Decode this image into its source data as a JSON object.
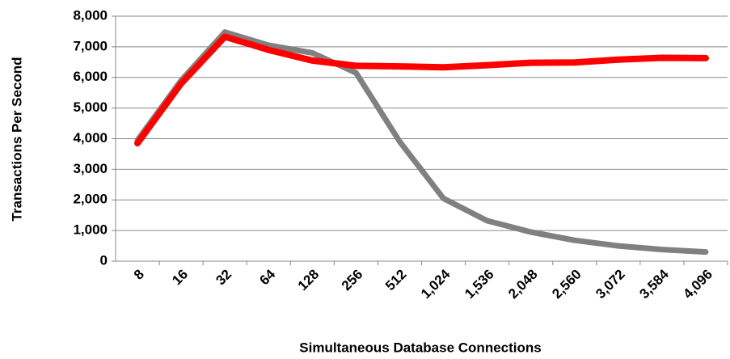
{
  "chart_data": {
    "type": "line",
    "xlabel": "Simultaneous Database Connections",
    "ylabel": "Transactions Per Second",
    "categories": [
      "8",
      "16",
      "32",
      "64",
      "128",
      "256",
      "512",
      "1,024",
      "1,536",
      "2,048",
      "2,560",
      "3,072",
      "3,584",
      "4,096"
    ],
    "series": [
      {
        "color": "#808080",
        "values": [
          3950,
          5900,
          7480,
          7050,
          6800,
          6150,
          3900,
          2050,
          1320,
          950,
          680,
          500,
          380,
          300
        ]
      },
      {
        "color": "#ff0000",
        "values": [
          3850,
          5800,
          7330,
          6900,
          6550,
          6380,
          6360,
          6330,
          6400,
          6480,
          6490,
          6580,
          6640,
          6630
        ]
      }
    ],
    "ylim": [
      0,
      8000
    ],
    "yticks": [
      0,
      {
        "value": 1000,
        "label": "1,000"
      },
      {
        "value": 2000,
        "label": "2,000"
      },
      {
        "value": 3000,
        "label": "3,000"
      },
      {
        "value": 4000,
        "label": "4,000"
      },
      {
        "value": 5000,
        "label": "5,000"
      },
      {
        "value": 6000,
        "label": "6,000"
      },
      {
        "value": 7000,
        "label": "7,000"
      },
      {
        "value": 8000,
        "label": "8,000"
      }
    ],
    "grid": true
  }
}
